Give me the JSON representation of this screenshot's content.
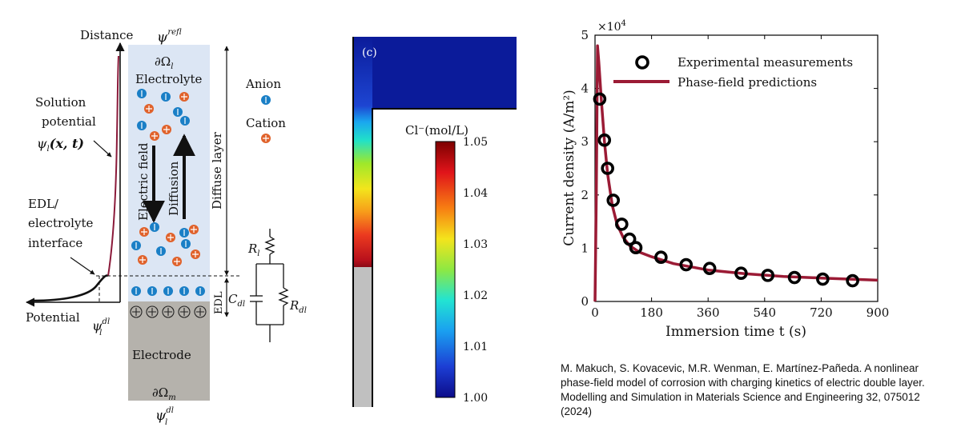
{
  "schematic": {
    "distance_label": "Distance",
    "potential_label": "Potential",
    "psi_ref": "ψ",
    "psi_ref_sup": "ref",
    "psi_ref_sub": "l",
    "omega_l": "∂Ω",
    "omega_l_sub": "l",
    "electrolyte": "Electrolyte",
    "solution_potential_1": "Solution",
    "solution_potential_2": "potential",
    "psi_x_t": "ψ",
    "psi_x_t_args": "(x, t)",
    "edl_interface_1": "EDL/",
    "edl_interface_2": "electrolyte",
    "edl_interface_3": "interface",
    "electric_field": "Electric field",
    "diffusion": "Diffusion",
    "diffuse_layer": "Diffuse layer",
    "edl": "EDL",
    "anion": "Anion",
    "cation": "Cation",
    "r_l": "R",
    "r_l_sub": "l",
    "c_dl": "C",
    "c_dl_sub": "dl",
    "r_dl": "R",
    "r_dl_sub": "dl",
    "electrode": "Electrode",
    "omega_m": "∂Ω",
    "omega_m_sub": "m",
    "psi_dl": "ψ",
    "psi_dl_sup": "dl",
    "psi_dl_sub": "l",
    "colors": {
      "anion": "#1a7fc6",
      "cation": "#e0622b",
      "electrolyte_bg": "#dce6f4",
      "electrode_bg": "#b5b2ac",
      "potential_curve": "#8b1a3a"
    }
  },
  "contour": {
    "panel_label": "(c)",
    "colorbar_title": "Cl⁻(mol/L)",
    "colorbar_ticks": [
      "1.05",
      "1.04",
      "1.03",
      "1.02",
      "1.01",
      "1.00"
    ]
  },
  "chart_data": {
    "type": "line",
    "title": "",
    "exponent": "×10",
    "exponent_power": "4",
    "xlabel": "Immersion time t (s)",
    "ylabel": "Current density (A/m²)",
    "xlim": [
      0,
      900
    ],
    "ylim": [
      0,
      50000
    ],
    "xticks": [
      "0",
      "180",
      "360",
      "540",
      "720",
      "900"
    ],
    "yticks": [
      "0",
      "1",
      "2",
      "3",
      "4",
      "5"
    ],
    "legend": [
      "Experimental measurements",
      "Phase-field predictions"
    ],
    "legend_position": "top-right",
    "series": [
      {
        "name": "Experimental measurements",
        "type": "scatter",
        "x": [
          15,
          30,
          40,
          58,
          85,
          110,
          130,
          210,
          290,
          365,
          465,
          550,
          635,
          725,
          820
        ],
        "y": [
          38000,
          30300,
          25000,
          19000,
          14500,
          11700,
          10100,
          8300,
          6900,
          6200,
          5300,
          4900,
          4500,
          4200,
          3900
        ]
      },
      {
        "name": "Phase-field predictions",
        "type": "line",
        "x": [
          0,
          4,
          8,
          12,
          20,
          30,
          40,
          55,
          70,
          90,
          110,
          140,
          180,
          250,
          360,
          480,
          600,
          720,
          900
        ],
        "y": [
          0,
          20000,
          48000,
          45000,
          38000,
          30000,
          24000,
          18000,
          14500,
          12000,
          10500,
          9300,
          8400,
          7100,
          5900,
          5200,
          4700,
          4400,
          4000
        ]
      }
    ],
    "colors": {
      "line": "#9b1b35",
      "marker": "#000000"
    }
  },
  "citation": "M. Makuch, S. Kovacevic, M.R. Wenman, E. Martínez-Pañeda. A nonlinear phase-field model of corrosion with charging kinetics of electric double layer. Modelling and Simulation in Materials Science and Engineering 32, 075012 (2024)"
}
